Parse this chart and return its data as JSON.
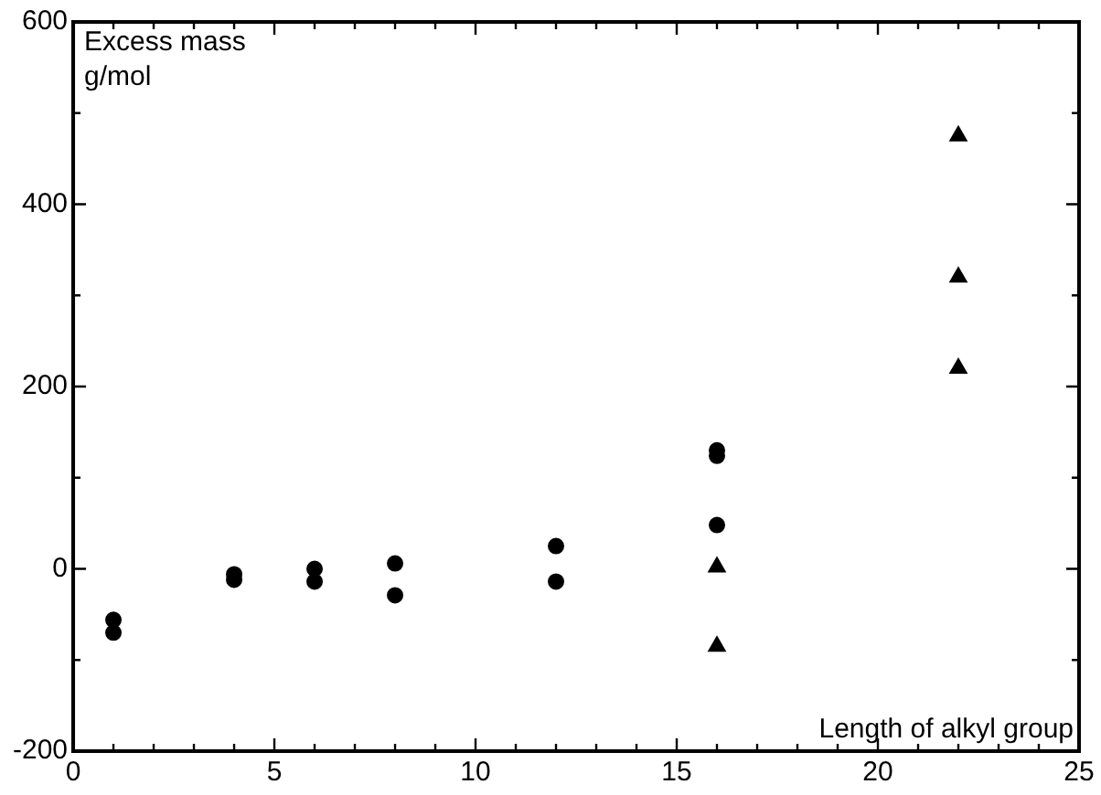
{
  "chart_data": {
    "type": "scatter",
    "xlabel": "Length of alkyl group",
    "ylabel": "Excess mass\ng/mol",
    "xlim": [
      0,
      25
    ],
    "ylim": [
      -200,
      600
    ],
    "xticks": [
      0,
      {
        "value": 1,
        "label": null
      },
      {
        "value": 2,
        "label": null
      },
      {
        "value": 3,
        "label": null
      },
      {
        "value": 4,
        "label": null
      },
      5,
      {
        "value": 6,
        "label": null
      },
      {
        "value": 7,
        "label": null
      },
      {
        "value": 8,
        "label": null
      },
      {
        "value": 9,
        "label": null
      },
      10,
      {
        "value": 11,
        "label": null
      },
      {
        "value": 12,
        "label": null
      },
      {
        "value": 13,
        "label": null
      },
      {
        "value": 14,
        "label": null
      },
      15,
      {
        "value": 16,
        "label": null
      },
      {
        "value": 17,
        "label": null
      },
      {
        "value": 18,
        "label": null
      },
      {
        "value": 19,
        "label": null
      },
      20,
      {
        "value": 21,
        "label": null
      },
      {
        "value": 22,
        "label": null
      },
      {
        "value": 23,
        "label": null
      },
      {
        "value": 24,
        "label": null
      },
      25
    ],
    "yticks": [
      -200,
      {
        "value": -100,
        "label": null
      },
      0,
      {
        "value": 100,
        "label": null
      },
      200,
      {
        "value": 300,
        "label": null
      },
      400,
      {
        "value": 500,
        "label": null
      },
      600
    ],
    "grid": false,
    "legend": false,
    "series": [
      {
        "color": "#000000",
        "marker": "circle",
        "x": [
          1,
          1,
          4,
          4,
          6,
          6,
          8,
          8,
          12,
          12,
          16,
          16,
          16
        ],
        "values": [
          -56,
          -70,
          -6,
          -12,
          0,
          -14,
          6,
          -29,
          25,
          -14,
          130,
          124,
          48
        ]
      },
      {
        "color": "#000000",
        "marker": "triangle",
        "x": [
          16,
          16,
          22,
          22,
          22
        ],
        "values": [
          2,
          -85,
          475,
          320,
          220
        ]
      }
    ]
  }
}
